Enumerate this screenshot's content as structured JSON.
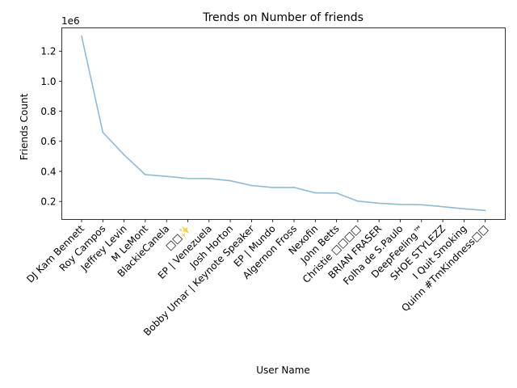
{
  "chart_data": {
    "type": "line",
    "title": "Trends on Number of friends",
    "xlabel": "User Name",
    "ylabel": "Friends Count",
    "y_offset_label": "1e6",
    "categories": [
      "DJ Kam Bennett",
      "Roy Campos",
      "Jeffrey Levin",
      "M LeMont",
      "BlackieCanela",
      "□□✨",
      "EP | Venezuela",
      "Josh Horton",
      "Bobby Umar | Keynote Speaker",
      "EP | Mundo",
      "Algernon  Fross",
      "Nexofin",
      "John Betts",
      "Christie □□□□",
      "BRIAN FRASER",
      "Folha de S.Paulo",
      "DeepFeeling™",
      "SHOE STYLEZZ",
      "I Quit Smoking",
      "Quinn #TmKindness□□"
    ],
    "series": [
      {
        "color": "#8bbbd9",
        "values": [
          1300000,
          660000,
          510000,
          378000,
          367000,
          353000,
          352000,
          338000,
          306000,
          293000,
          293000,
          257000,
          256000,
          202000,
          188000,
          180000,
          178000,
          165000,
          151000,
          140000
        ]
      }
    ],
    "yticks": [
      0.2,
      0.4,
      0.6,
      0.8,
      1.0,
      1.2
    ],
    "ytick_labels": [
      "0.2",
      "0.4",
      "0.6",
      "0.8",
      "1.0",
      "1.2"
    ],
    "ylim": [
      80000,
      1355000
    ],
    "grid": false,
    "legend": "none"
  }
}
